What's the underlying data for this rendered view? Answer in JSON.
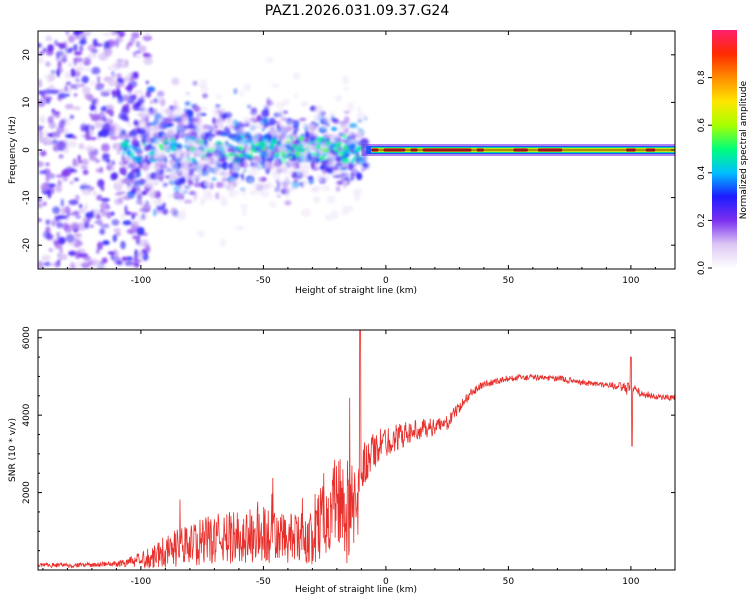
{
  "title": "PAZ1.2026.031.09.37.G24",
  "colors": {
    "snr_line": "#e8302c",
    "spectral_core": "#dd2020",
    "frame": "#000000",
    "background": "#ffffff"
  },
  "chart_data": [
    {
      "id": "spectrogram",
      "type": "heatmap",
      "xlabel": "Height of straight line (km)",
      "ylabel": "Frequency (Hz)",
      "xlim": [
        -142,
        118
      ],
      "ylim": [
        -25,
        25
      ],
      "xticks": [
        -100,
        -50,
        0,
        50,
        100
      ],
      "xtick_labels": [
        "-100",
        "-50",
        "0",
        "50",
        "100"
      ],
      "yticks": [
        -20,
        -10,
        0,
        10,
        20
      ],
      "ytick_labels": [
        "-20",
        "-10",
        "0",
        "10",
        "20"
      ],
      "colorbar": {
        "label": "Normalized spectral amplitude",
        "range": [
          0.0,
          1.0
        ],
        "ticks": [
          0.0,
          0.2,
          0.4,
          0.6,
          0.8
        ],
        "tick_labels": [
          "0.0",
          "0.2",
          "0.4",
          "0.6",
          "0.8"
        ],
        "colormap": [
          "#ffffff",
          "#dcc6f4",
          "#7b2ff0",
          "#1c1cff",
          "#00bfff",
          "#00ff7a",
          "#a8ff00",
          "#ffe600",
          "#ff8c00",
          "#ff2a00",
          "#ff1f6e"
        ]
      },
      "regions": [
        {
          "x_range": [
            -142,
            -105
          ],
          "freq_spread": 25,
          "amplitude": 0.15,
          "desc": "scattered noise"
        },
        {
          "x_range": [
            -105,
            -10
          ],
          "freq_spread": 8,
          "amplitude": 0.3,
          "desc": "noisy band around 0 Hz"
        },
        {
          "x_range": [
            -10,
            118
          ],
          "freq_spread": 1,
          "amplitude": 0.9,
          "desc": "narrow strong line at 0 Hz"
        }
      ]
    },
    {
      "id": "snr",
      "type": "line",
      "xlabel": "Height of straight line (km)",
      "ylabel": "SNR (10 * v/v)",
      "xlim": [
        -142,
        118
      ],
      "ylim": [
        0,
        6200
      ],
      "xticks": [
        -100,
        -50,
        0,
        50,
        100
      ],
      "xtick_labels": [
        "-100",
        "-50",
        "0",
        "50",
        "100"
      ],
      "yticks": [
        2000,
        4000,
        6000
      ],
      "ytick_labels": [
        "2000",
        "4000",
        "6000"
      ],
      "envelope": {
        "x": [
          -142,
          -120,
          -110,
          -100,
          -90,
          -80,
          -70,
          -60,
          -50,
          -40,
          -30,
          -25,
          -20,
          -15,
          -12,
          -10,
          -8,
          -5,
          0,
          5,
          10,
          15,
          20,
          25,
          30,
          35,
          40,
          50,
          60,
          70,
          80,
          90,
          95,
          100,
          105,
          110,
          118
        ],
        "mean": [
          120,
          130,
          160,
          250,
          500,
          650,
          800,
          850,
          900,
          800,
          800,
          1500,
          1800,
          1500,
          1200,
          2600,
          2800,
          3100,
          3300,
          3450,
          3550,
          3650,
          3700,
          3800,
          4200,
          4600,
          4800,
          4950,
          4980,
          4950,
          4850,
          4780,
          4750,
          4650,
          4550,
          4480,
          4450
        ],
        "noise": [
          60,
          60,
          80,
          200,
          450,
          550,
          650,
          700,
          800,
          650,
          700,
          1100,
          1400,
          1400,
          1200,
          650,
          600,
          500,
          400,
          350,
          300,
          250,
          220,
          180,
          150,
          120,
          90,
          80,
          80,
          80,
          80,
          80,
          100,
          200,
          100,
          80,
          80
        ]
      },
      "annotations": {
        "spike_peak": {
          "x": -10.5,
          "y": 6200
        },
        "spike_100km_max": {
          "x": 100,
          "y": 5500
        },
        "spike_100km_min": {
          "x": 100.5,
          "y": 3200
        }
      }
    }
  ]
}
